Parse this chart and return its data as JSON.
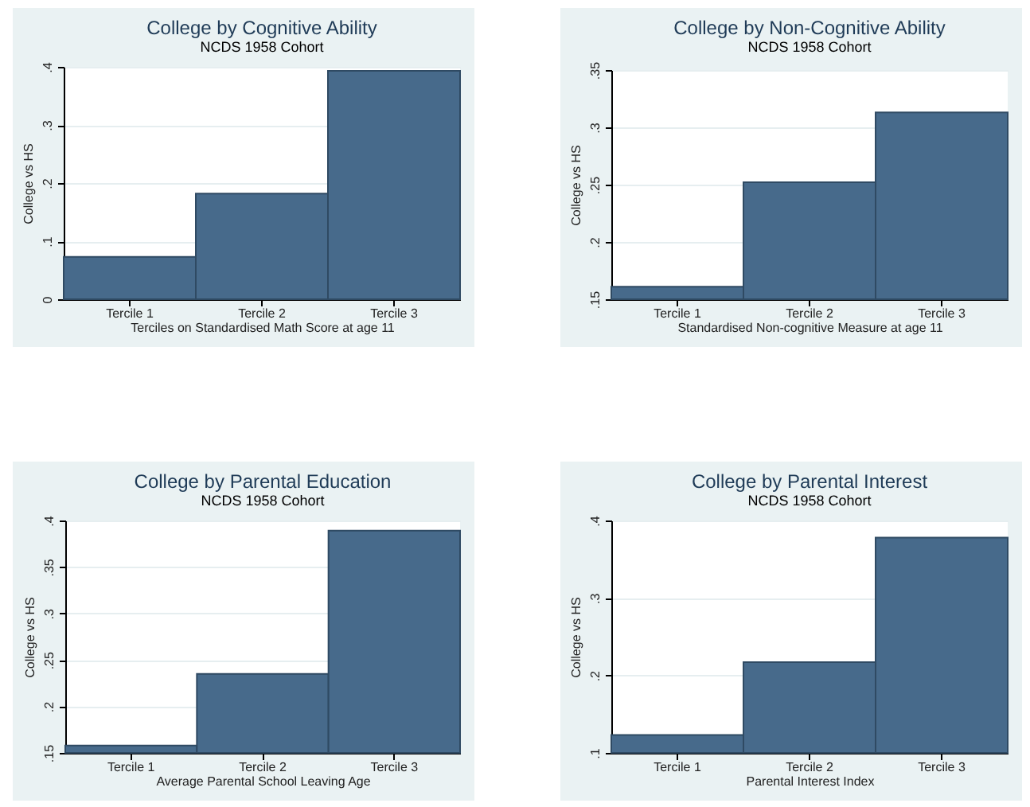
{
  "chart_data": [
    {
      "type": "bar",
      "title": "College by Cognitive Ability",
      "subtitle": "NCDS 1958 Cohort",
      "xlabel": "Terciles on Standardised Math Score at age 11",
      "ylabel": "College vs HS",
      "categories": [
        "Tercile 1",
        "Tercile 2",
        "Tercile 3"
      ],
      "values": [
        0.073,
        0.182,
        0.393
      ],
      "color": "#476a8b",
      "ylim": [
        0,
        0.4
      ],
      "yticks": [
        0,
        {
          "value": 0.1,
          "label": ".1"
        },
        {
          "value": 0.2,
          "label": ".2"
        },
        {
          "value": 0.3,
          "label": ".3"
        },
        {
          "value": 0.4,
          "label": ".4"
        }
      ],
      "grid": "y"
    },
    {
      "type": "bar",
      "title": "College by Non-Cognitive Ability",
      "subtitle": "NCDS 1958 Cohort",
      "xlabel": "Standardised Non-cognitive Measure at age 11",
      "ylabel": "College vs HS",
      "categories": [
        "Tercile 1",
        "Tercile 2",
        "Tercile 3"
      ],
      "values": [
        0.161,
        0.252,
        0.313
      ],
      "color": "#476a8b",
      "ylim": [
        0.15,
        0.35
      ],
      "yticks": [
        {
          "value": 0.15,
          "label": ".15"
        },
        {
          "value": 0.2,
          "label": ".2"
        },
        {
          "value": 0.25,
          "label": ".25"
        },
        {
          "value": 0.3,
          "label": ".3"
        },
        {
          "value": 0.35,
          "label": ".35"
        }
      ],
      "grid": "y"
    },
    {
      "type": "bar",
      "title": "College by Parental Education",
      "subtitle": "NCDS 1958 Cohort",
      "xlabel": "Average Parental School Leaving Age",
      "ylabel": "College vs HS",
      "categories": [
        "Tercile 1",
        "Tercile 2",
        "Tercile 3"
      ],
      "values": [
        0.158,
        0.235,
        0.389
      ],
      "color": "#476a8b",
      "ylim": [
        0.15,
        0.4
      ],
      "yticks": [
        {
          "value": 0.15,
          "label": ".15"
        },
        {
          "value": 0.2,
          "label": ".2"
        },
        {
          "value": 0.25,
          "label": ".25"
        },
        {
          "value": 0.3,
          "label": ".3"
        },
        {
          "value": 0.35,
          "label": ".35"
        },
        {
          "value": 0.4,
          "label": ".4"
        }
      ],
      "grid": "y"
    },
    {
      "type": "bar",
      "title": "College by Parental Interest",
      "subtitle": "NCDS 1958 Cohort",
      "xlabel": "Parental Interest Index",
      "ylabel": "College vs HS",
      "categories": [
        "Tercile 1",
        "Tercile 2",
        "Tercile 3"
      ],
      "values": [
        0.123,
        0.217,
        0.378
      ],
      "color": "#476a8b",
      "ylim": [
        0.1,
        0.4
      ],
      "yticks": [
        {
          "value": 0.1,
          "label": ".1"
        },
        {
          "value": 0.2,
          "label": ".2"
        },
        {
          "value": 0.3,
          "label": ".3"
        },
        {
          "value": 0.4,
          "label": ".4"
        }
      ],
      "grid": "y"
    }
  ]
}
